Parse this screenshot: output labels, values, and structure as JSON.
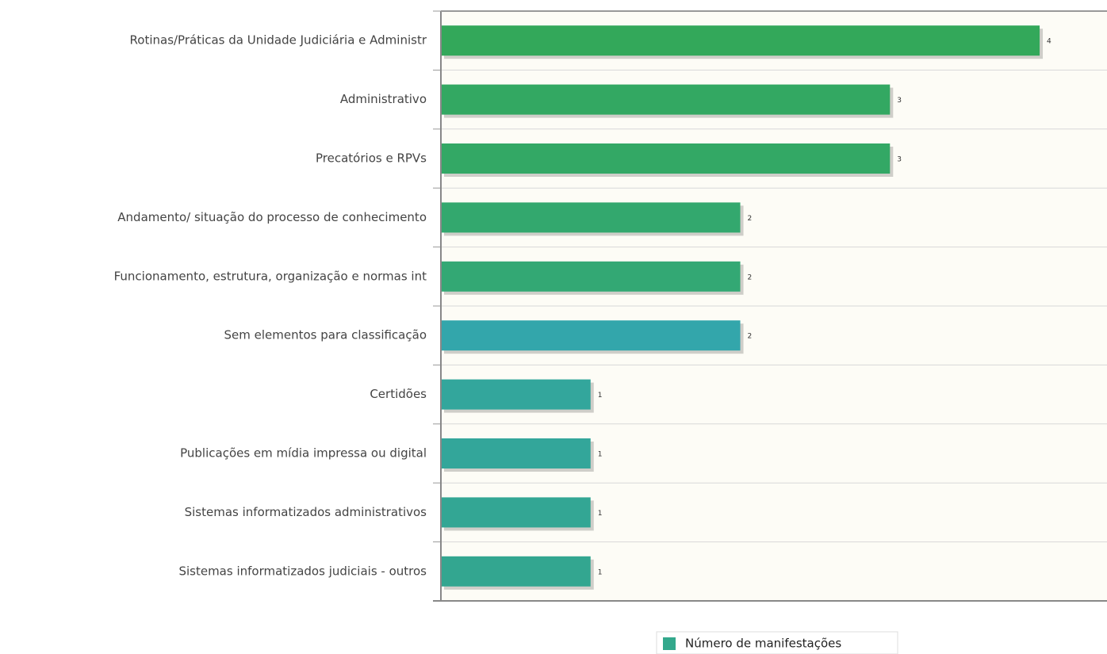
{
  "chart_data": {
    "type": "bar",
    "orientation": "horizontal",
    "categories": [
      "Rotinas/Práticas da Unidade Judiciária e Administr",
      "Administrativo",
      "Precatórios e RPVs",
      "Andamento/ situação do processo de conhecimento",
      "Funcionamento, estrutura, organização e normas int",
      "Sem elementos para classificação",
      "Certidões",
      "Publicações em mídia impressa ou digital",
      "Sistemas informatizados administrativos",
      "Sistemas informatizados judiciais - outros"
    ],
    "series": [
      {
        "name": "Número de manifestações",
        "color": "#33a88c",
        "values": [
          4,
          3,
          3,
          2,
          2,
          2,
          1,
          1,
          1,
          1
        ],
        "colors": [
          "#33a85a",
          "#33a862",
          "#33a865",
          "#33a86e",
          "#33a874",
          "#33a6ab",
          "#33a69c",
          "#33a69a",
          "#33a694",
          "#33a690"
        ]
      }
    ],
    "xlim": [
      0,
      4.45
    ]
  }
}
